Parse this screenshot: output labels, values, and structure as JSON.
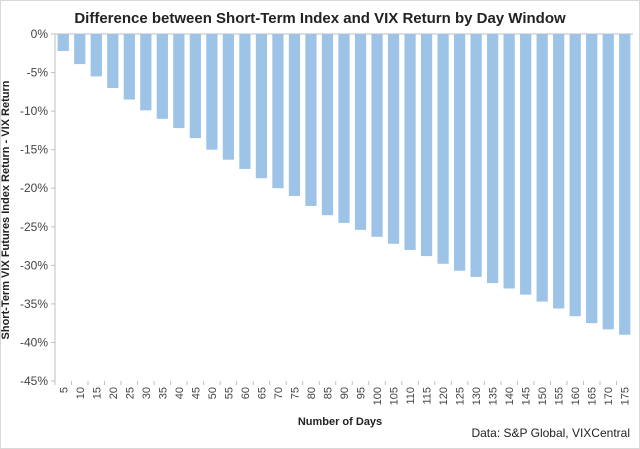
{
  "chart_data": {
    "type": "bar",
    "title": "Difference between Short-Term Index and VIX Return by Day Window",
    "xlabel": "Number of Days",
    "ylabel": "Short-Term VIX Futures Index Return - VIX Return",
    "source": "Data: S&P Global, VIXCentral",
    "ylim": [
      -45,
      0
    ],
    "yticks": [
      0,
      -5,
      -10,
      -15,
      -20,
      -25,
      -30,
      -35,
      -40,
      -45
    ],
    "ytick_suffix": "%",
    "grid": false,
    "bar_color": "#9dc3e6",
    "categories": [
      "5",
      "10",
      "15",
      "20",
      "25",
      "30",
      "35",
      "40",
      "45",
      "50",
      "55",
      "60",
      "65",
      "70",
      "75",
      "80",
      "85",
      "90",
      "95",
      "100",
      "105",
      "110",
      "115",
      "120",
      "125",
      "130",
      "135",
      "140",
      "145",
      "150",
      "155",
      "160",
      "165",
      "170",
      "175"
    ],
    "values": [
      -2.2,
      -3.9,
      -5.5,
      -7.0,
      -8.5,
      -9.9,
      -11.0,
      -12.2,
      -13.5,
      -15.0,
      -16.3,
      -17.5,
      -18.7,
      -20.0,
      -21.0,
      -22.3,
      -23.5,
      -24.5,
      -25.4,
      -26.3,
      -27.2,
      -28.0,
      -28.8,
      -29.8,
      -30.7,
      -31.5,
      -32.3,
      -33.0,
      -33.8,
      -34.7,
      -35.6,
      -36.6,
      -37.5,
      -38.3,
      -39.0
    ]
  }
}
